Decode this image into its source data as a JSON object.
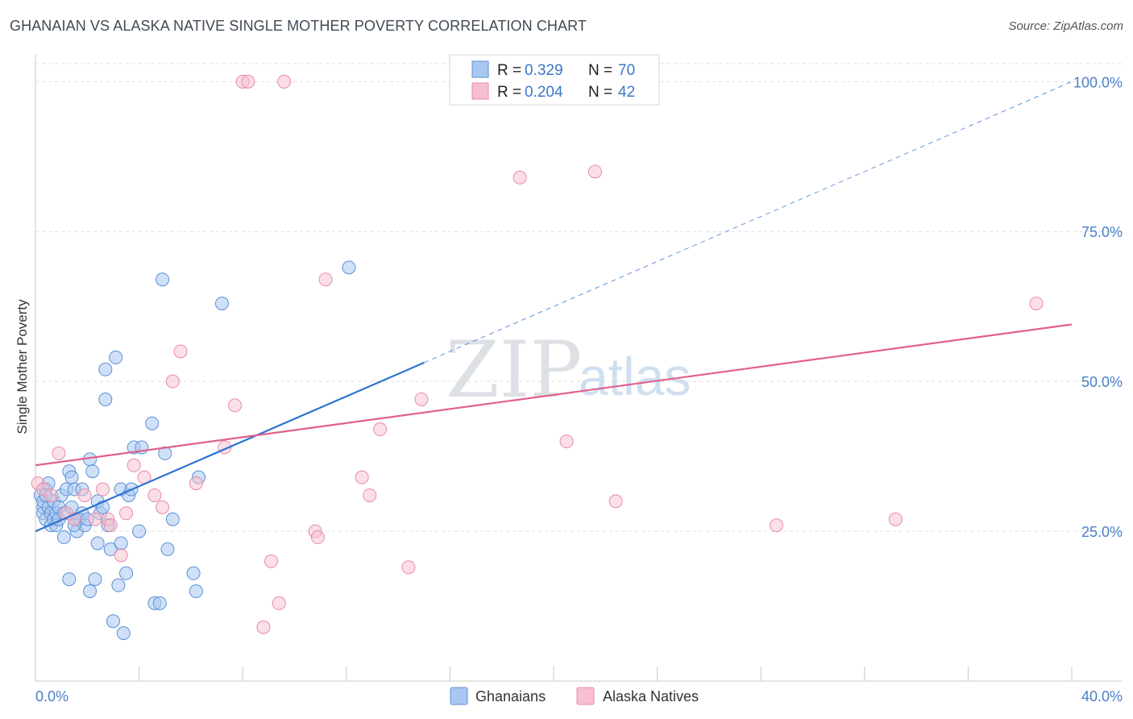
{
  "header": {
    "title": "GHANAIAN VS ALASKA NATIVE SINGLE MOTHER POVERTY CORRELATION CHART",
    "source": "Source: ZipAtlas.com"
  },
  "watermark": {
    "zip": "ZIP",
    "atlas": "atlas"
  },
  "colors": {
    "blue_fill": "#a9c8f0",
    "blue_stroke": "#5b8fd6",
    "blue_line": "#2e74d0",
    "pink_fill": "#f7bfd0",
    "pink_stroke": "#e88aa8",
    "pink_line": "#e0608c",
    "tick_text": "#4a7fc9",
    "grid": "#dcdcdc"
  },
  "legend": {
    "rows": [
      {
        "r_label": "R =",
        "r_value": "0.329",
        "n_label": "N =",
        "n_value": "70"
      },
      {
        "r_label": "R =",
        "r_value": "0.204",
        "n_label": "N =",
        "n_value": "42"
      }
    ]
  },
  "chart_data": {
    "type": "scatter",
    "title": "GHANAIAN VS ALASKA NATIVE SINGLE MOTHER POVERTY CORRELATION CHART",
    "xlabel": "",
    "ylabel": "Single Mother Poverty",
    "xlim": [
      0,
      40
    ],
    "ylim": [
      0,
      103
    ],
    "x_tick_labels": [
      "0.0%",
      "40.0%"
    ],
    "y_ticks": [
      25,
      50,
      75,
      100
    ],
    "y_tick_labels": [
      "25.0%",
      "50.0%",
      "75.0%",
      "100.0%"
    ],
    "grid": true,
    "series": [
      {
        "name": "Ghanaians",
        "points": [
          [
            0.2,
            31
          ],
          [
            0.3,
            29
          ],
          [
            0.3,
            28
          ],
          [
            0.3,
            30
          ],
          [
            0.4,
            32
          ],
          [
            0.4,
            27
          ],
          [
            0.5,
            29
          ],
          [
            0.5,
            33
          ],
          [
            0.6,
            26
          ],
          [
            0.6,
            28
          ],
          [
            0.7,
            27
          ],
          [
            0.7,
            30
          ],
          [
            0.8,
            28
          ],
          [
            0.8,
            26
          ],
          [
            0.9,
            29
          ],
          [
            0.9,
            27
          ],
          [
            1.0,
            31
          ],
          [
            1.1,
            24
          ],
          [
            1.1,
            28
          ],
          [
            1.2,
            32
          ],
          [
            1.3,
            35
          ],
          [
            1.3,
            17
          ],
          [
            1.4,
            34
          ],
          [
            1.4,
            29
          ],
          [
            1.5,
            32
          ],
          [
            1.6,
            27
          ],
          [
            1.6,
            25
          ],
          [
            1.7,
            27
          ],
          [
            1.8,
            28
          ],
          [
            1.8,
            32
          ],
          [
            1.9,
            26
          ],
          [
            2.0,
            27
          ],
          [
            2.1,
            37
          ],
          [
            2.1,
            15
          ],
          [
            2.2,
            35
          ],
          [
            2.3,
            17
          ],
          [
            2.4,
            30
          ],
          [
            2.4,
            23
          ],
          [
            2.5,
            28
          ],
          [
            2.6,
            29
          ],
          [
            2.7,
            47
          ],
          [
            2.7,
            52
          ],
          [
            2.8,
            26
          ],
          [
            2.9,
            22
          ],
          [
            3.0,
            10
          ],
          [
            3.1,
            54
          ],
          [
            3.2,
            16
          ],
          [
            3.3,
            23
          ],
          [
            3.3,
            32
          ],
          [
            3.4,
            8
          ],
          [
            3.5,
            18
          ],
          [
            3.6,
            31
          ],
          [
            3.7,
            32
          ],
          [
            3.8,
            39
          ],
          [
            4.0,
            25
          ],
          [
            4.1,
            39
          ],
          [
            4.5,
            43
          ],
          [
            4.6,
            13
          ],
          [
            4.8,
            13
          ],
          [
            4.9,
            67
          ],
          [
            5.0,
            38
          ],
          [
            5.1,
            22
          ],
          [
            5.3,
            27
          ],
          [
            6.1,
            18
          ],
          [
            6.2,
            15
          ],
          [
            6.3,
            34
          ],
          [
            7.2,
            63
          ],
          [
            12.1,
            69
          ],
          [
            0.4,
            31
          ],
          [
            1.5,
            26
          ]
        ]
      },
      {
        "name": "Alaska Natives",
        "points": [
          [
            0.1,
            33
          ],
          [
            0.3,
            32
          ],
          [
            0.6,
            31
          ],
          [
            0.9,
            38
          ],
          [
            1.2,
            28
          ],
          [
            1.5,
            27
          ],
          [
            1.9,
            31
          ],
          [
            2.3,
            27
          ],
          [
            2.6,
            32
          ],
          [
            2.8,
            27
          ],
          [
            2.9,
            26
          ],
          [
            3.3,
            21
          ],
          [
            3.5,
            28
          ],
          [
            3.8,
            36
          ],
          [
            4.2,
            34
          ],
          [
            4.6,
            31
          ],
          [
            4.9,
            29
          ],
          [
            5.3,
            50
          ],
          [
            5.6,
            55
          ],
          [
            6.2,
            33
          ],
          [
            7.3,
            39
          ],
          [
            7.7,
            46
          ],
          [
            8.0,
            100
          ],
          [
            8.2,
            100
          ],
          [
            8.8,
            9
          ],
          [
            9.1,
            20
          ],
          [
            9.4,
            13
          ],
          [
            9.6,
            100
          ],
          [
            10.8,
            25
          ],
          [
            10.9,
            24
          ],
          [
            11.2,
            67
          ],
          [
            12.6,
            34
          ],
          [
            12.9,
            31
          ],
          [
            13.3,
            42
          ],
          [
            14.4,
            19
          ],
          [
            14.9,
            47
          ],
          [
            18.7,
            84
          ],
          [
            20.5,
            40
          ],
          [
            21.6,
            85
          ],
          [
            22.4,
            30
          ],
          [
            28.6,
            26
          ],
          [
            33.2,
            27
          ]
        ]
      }
    ],
    "trendlines": [
      {
        "series": "Ghanaians",
        "x": [
          0,
          40
        ],
        "y": [
          25,
          100
        ],
        "solid_until_x": 15
      },
      {
        "series": "Alaska Natives",
        "x": [
          0,
          40
        ],
        "y": [
          36,
          59.5
        ]
      }
    ],
    "extra_points": [
      {
        "series": "Alaska Natives",
        "x": 40,
        "y": 63
      }
    ],
    "legend_entries": [
      "Ghanaians",
      "Alaska Natives"
    ]
  }
}
